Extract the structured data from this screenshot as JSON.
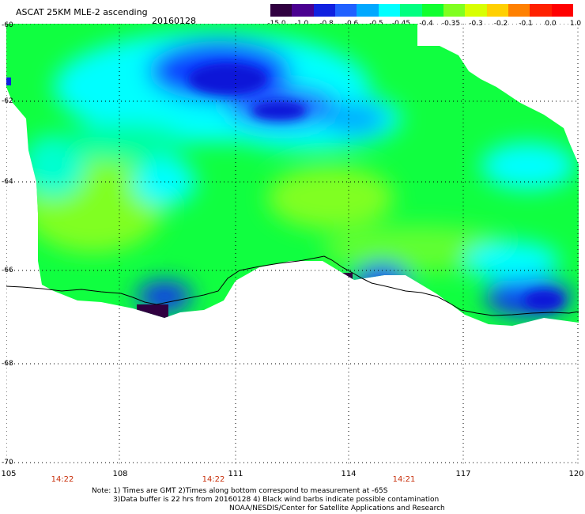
{
  "header": {
    "title": "ASCAT 25KM MLE-2 ascending",
    "date": "20160128"
  },
  "colorbar": {
    "colors": [
      "#300040",
      "#4a0090",
      "#1020e0",
      "#2060ff",
      "#00a8ff",
      "#00ffff",
      "#00ff80",
      "#10ff30",
      "#80ff20",
      "#d8ff00",
      "#ffd000",
      "#ff8000",
      "#ff2000",
      "#ff0000"
    ],
    "labels": [
      "-15.0",
      "-1.0",
      "-0.8",
      "-0.6",
      "-0.5",
      "-0.45",
      "-0.4",
      "-0.35",
      "-0.3",
      "-0.2",
      "-0.1",
      "0.0",
      "1.0"
    ]
  },
  "axes": {
    "lat_labels": [
      "-60",
      "-62",
      "-64",
      "-66",
      "-68",
      "-70"
    ],
    "lon_labels": [
      "105",
      "108",
      "111",
      "114",
      "117",
      "120"
    ]
  },
  "pass_times": [
    "14:22",
    "14:22",
    "14:21"
  ],
  "notes": {
    "line1": "Note: 1) Times are GMT 2)Times along bottom correspond to measurement at -65S",
    "line2": "3)Data buffer is 22 hrs from 20160128 4) Black wind barbs indicate possible contamination",
    "line3": "NOAA/NESDIS/Center for Satellite Applications and Research"
  }
}
